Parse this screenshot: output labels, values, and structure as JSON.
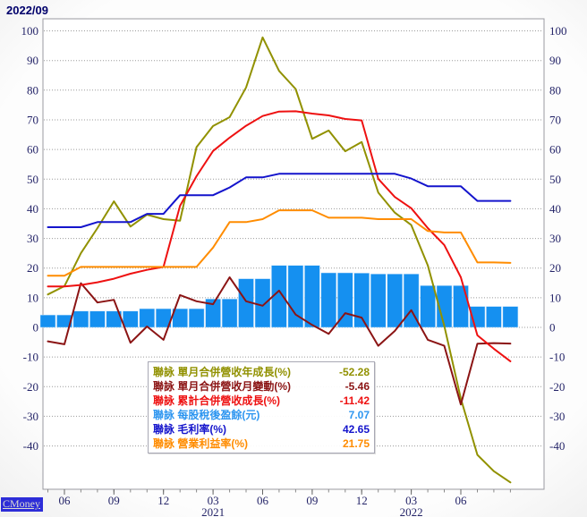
{
  "header": {
    "title": "2022/09"
  },
  "watermark": {
    "label": "CMoney"
  },
  "stock": {
    "name": "聯詠"
  },
  "colors": {
    "yoy_line": "#919100",
    "mom_line": "#8b1414",
    "cum_line": "#ee1111",
    "eps_bar": "#1590f0",
    "gross_line": "#1414cc",
    "op_line": "#ff8c00",
    "axis_text": "#242468",
    "title_text": "#00006b",
    "grid": "#9b9b9b",
    "legend_eps_text": "#2e96f0"
  },
  "legend": {
    "rows": [
      {
        "id": "yoy",
        "label": "聯詠 單月合併營收年成長(%)",
        "value": "-52.28",
        "color": "#919100"
      },
      {
        "id": "mom",
        "label": "聯詠 單月合併營收月變動(%)",
        "value": "-5.46",
        "color": "#8b1414"
      },
      {
        "id": "cum",
        "label": "聯詠 累計合併營收成長(%)",
        "value": "-11.42",
        "color": "#ee1111"
      },
      {
        "id": "eps",
        "label": "聯詠 每股稅後盈餘(元)",
        "value": "7.07",
        "color": "#2e96f0"
      },
      {
        "id": "gross",
        "label": "聯詠 毛利率(%)",
        "value": "42.65",
        "color": "#1414cc"
      },
      {
        "id": "op",
        "label": "聯詠 營業利益率(%)",
        "value": "21.75",
        "color": "#ff8c00"
      }
    ]
  },
  "chart_data": {
    "type": "mixed-bar-line",
    "title": "2022/09",
    "grid": true,
    "ylim": [
      -54.6,
      104.2
    ],
    "y_ticks": [
      100,
      90,
      80,
      70,
      60,
      50,
      40,
      30,
      20,
      10,
      0,
      -10,
      -20,
      -30,
      -40
    ],
    "x": [
      "2020/05",
      "2020/06",
      "2020/07",
      "2020/08",
      "2020/09",
      "2020/10",
      "2020/11",
      "2020/12",
      "2021/01",
      "2021/02",
      "2021/03",
      "2021/04",
      "2021/05",
      "2021/06",
      "2021/07",
      "2021/08",
      "2021/09",
      "2021/10",
      "2021/11",
      "2021/12",
      "2022/01",
      "2022/02",
      "2022/03",
      "2022/04",
      "2022/05",
      "2022/06",
      "2022/07",
      "2022/08",
      "2022/09"
    ],
    "x_tick_labels": [
      {
        "index": 1,
        "label": "06"
      },
      {
        "index": 4,
        "label": "09"
      },
      {
        "index": 7,
        "label": "12"
      },
      {
        "index": 10,
        "label": "03",
        "year": "2021"
      },
      {
        "index": 13,
        "label": "06"
      },
      {
        "index": 16,
        "label": "09"
      },
      {
        "index": 19,
        "label": "12"
      },
      {
        "index": 22,
        "label": "03",
        "year": "2022"
      },
      {
        "index": 25,
        "label": "06"
      }
    ],
    "series": [
      {
        "id": "yoy",
        "name": "聯詠 單月合併營收年成長(%)",
        "type": "line",
        "color": "#919100",
        "values": [
          11.1,
          13.9,
          25.0,
          33.5,
          42.5,
          34.0,
          38.0,
          36.5,
          36.0,
          60.8,
          67.9,
          70.9,
          80.9,
          97.8,
          86.5,
          80.4,
          63.6,
          66.4,
          59.4,
          62.5,
          45.5,
          38.7,
          34.5,
          20.9,
          0.5,
          -24.0,
          -43.0,
          -48.5,
          -52.28
        ]
      },
      {
        "id": "mom",
        "name": "聯詠 單月合併營收月變動(%)",
        "type": "line",
        "color": "#8b1414",
        "values": [
          -4.7,
          -5.7,
          14.9,
          8.4,
          9.3,
          -5.2,
          0.3,
          -4.2,
          10.9,
          8.8,
          7.8,
          16.9,
          8.8,
          7.3,
          12.4,
          4.3,
          0.8,
          -2.2,
          4.8,
          3.3,
          -6.2,
          -1.2,
          5.8,
          -4.2,
          -6.2,
          -26.0,
          -5.5,
          -5.3,
          -5.46
        ]
      },
      {
        "id": "cum",
        "name": "聯詠 累計合併營收成長(%)",
        "type": "line",
        "color": "#ee1111",
        "values": [
          13.8,
          13.8,
          14.3,
          15.2,
          16.4,
          18.1,
          19.4,
          20.4,
          41.0,
          51.0,
          59.5,
          64.0,
          68.0,
          71.3,
          72.8,
          72.9,
          72.1,
          71.5,
          70.3,
          69.8,
          50.1,
          44.0,
          40.2,
          33.5,
          27.8,
          16.9,
          -2.7,
          -7.2,
          -11.42
        ]
      },
      {
        "id": "eps",
        "name": "聯詠 每股稅後盈餘(元)",
        "type": "bar",
        "color": "#1590f0",
        "values": [
          4.2,
          4.2,
          5.5,
          5.5,
          5.5,
          5.5,
          6.3,
          6.3,
          6.3,
          6.3,
          9.6,
          9.6,
          16.4,
          16.4,
          20.9,
          20.9,
          20.9,
          18.4,
          18.4,
          18.3,
          18.0,
          18.0,
          18.0,
          14.1,
          14.1,
          14.1,
          7.07,
          7.07,
          7.07
        ]
      },
      {
        "id": "gross",
        "name": "聯詠 毛利率(%)",
        "type": "line",
        "color": "#1414cc",
        "values": [
          33.8,
          33.8,
          33.8,
          35.5,
          35.5,
          35.5,
          38.3,
          38.3,
          44.6,
          44.6,
          44.6,
          47.2,
          50.6,
          50.6,
          51.8,
          51.8,
          51.8,
          51.8,
          51.8,
          51.8,
          51.8,
          51.8,
          50.2,
          47.6,
          47.6,
          47.6,
          42.65,
          42.65,
          42.65
        ]
      },
      {
        "id": "op",
        "name": "聯詠 營業利益率(%)",
        "type": "line",
        "color": "#ff8c00",
        "values": [
          17.4,
          17.4,
          20.4,
          20.4,
          20.4,
          20.4,
          20.4,
          20.4,
          20.4,
          20.4,
          26.9,
          35.5,
          35.5,
          36.5,
          39.5,
          39.5,
          39.5,
          37.0,
          37.0,
          37.0,
          36.5,
          36.5,
          36.5,
          32.5,
          32.0,
          32.0,
          21.9,
          21.9,
          21.75
        ]
      }
    ]
  }
}
